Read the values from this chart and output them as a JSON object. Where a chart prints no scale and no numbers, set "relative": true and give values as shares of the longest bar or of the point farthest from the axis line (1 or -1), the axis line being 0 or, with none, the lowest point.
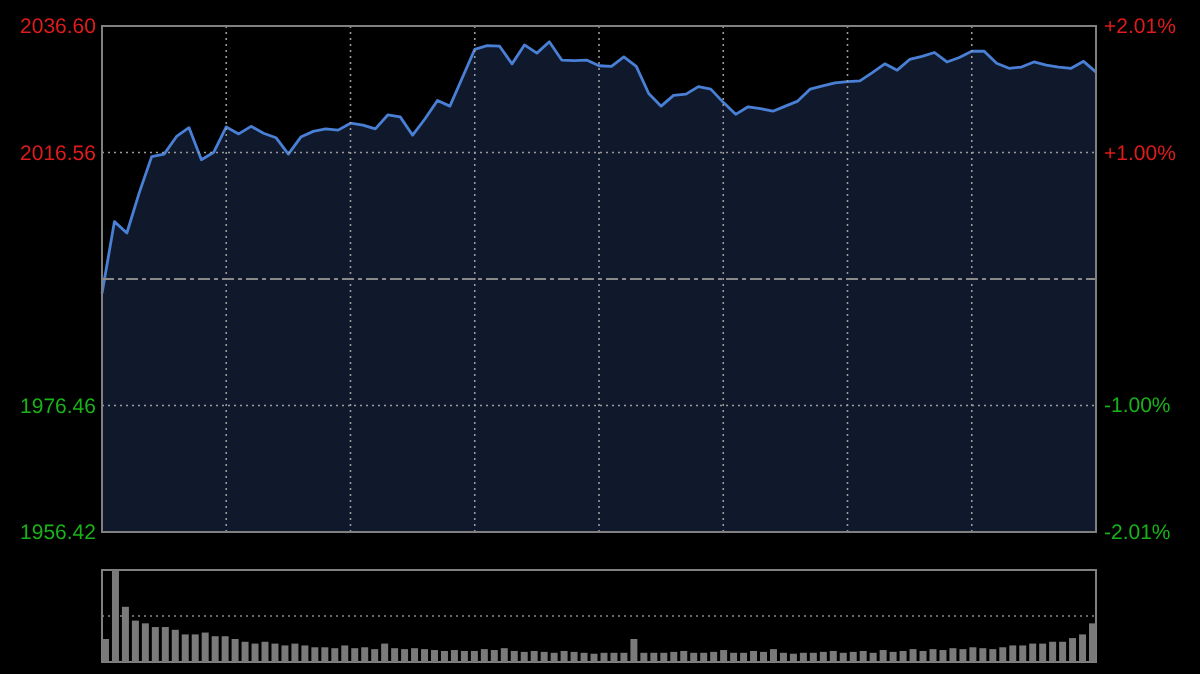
{
  "chart_data": [
    {
      "type": "area",
      "color": "#4a7fd6",
      "categories": [
        null,
        null,
        null,
        null,
        null,
        null,
        null,
        null,
        null,
        null,
        null,
        null,
        null,
        null,
        null,
        null,
        null,
        null,
        null,
        null,
        null,
        null,
        null,
        null,
        null,
        null,
        null,
        null,
        null,
        null,
        null,
        null,
        null,
        null,
        null,
        null,
        null,
        null,
        null,
        null,
        null,
        null,
        null,
        null,
        null,
        null,
        null,
        null,
        null,
        null,
        null,
        null,
        null,
        null,
        null,
        null,
        null,
        null,
        null,
        null,
        null,
        null,
        null,
        null,
        null,
        null,
        null,
        null,
        null,
        null,
        null,
        null,
        null,
        null,
        null,
        null,
        null,
        null,
        null,
        null,
        null
      ],
      "ylim": [
        1956.42,
        2036.6
      ],
      "yticks": [
        1956.42,
        1976.46,
        2016.56,
        {
          "value": 2036.6,
          "label": "2036.60"
        }
      ],
      "y2lim": [
        -2.01,
        2.01
      ],
      "y2ticks": [
        {
          "value": -2.01,
          "label": "-2.01%"
        },
        {
          "value": -1.0,
          "label": "-1.00%"
        },
        {
          "value": 1.0,
          "label": "+1.00%"
        },
        {
          "value": 2.01,
          "label": "+2.01%"
        }
      ],
      "grid": true,
      "ref_lines": [
        {
          "axis": "y",
          "value": 1996.51,
          "color": "#8a8a8a",
          "line_style": "dashed"
        }
      ],
      "values": [
        1994.2,
        2005.6,
        2003.8,
        2010.2,
        2015.9,
        2016.3,
        2019.1,
        2020.5,
        2015.4,
        2016.6,
        2020.6,
        2019.5,
        2020.7,
        2019.6,
        2018.9,
        2016.3,
        2019.0,
        2019.9,
        2020.3,
        2020.1,
        2021.2,
        2020.9,
        2020.3,
        2022.5,
        2022.2,
        2019.3,
        2021.9,
        2024.8,
        2023.9,
        2028.4,
        2032.9,
        2033.5,
        2033.4,
        2030.6,
        2033.6,
        2032.3,
        2034.1,
        2031.2,
        2031.1,
        2031.2,
        2030.3,
        2030.2,
        2031.7,
        2030.2,
        2025.9,
        2023.9,
        2025.6,
        2025.8,
        2027.0,
        2026.6,
        2024.5,
        2022.6,
        2023.8,
        2023.5,
        2023.1,
        2023.9,
        2024.7,
        2026.6,
        2027.1,
        2027.6,
        2027.8,
        2027.9,
        2029.2,
        2030.6,
        2029.6,
        2031.3,
        2031.8,
        2032.4,
        2030.9,
        2031.6,
        2032.6,
        2032.6,
        2030.7,
        2029.9,
        2030.1,
        2030.9,
        2030.4,
        2030.1,
        2029.9,
        2031.0,
        2029.3
      ]
    },
    {
      "type": "bar",
      "relative": true,
      "color": "#7a7a7a",
      "ref_lines": [
        {
          "axis": "y",
          "value": 0.5,
          "color": "#8a8a8a",
          "line_style": "dotted"
        }
      ],
      "categories": [
        null,
        null,
        null,
        null,
        null,
        null,
        null,
        null,
        null,
        null,
        null,
        null,
        null,
        null,
        null,
        null,
        null,
        null,
        null,
        null,
        null,
        null,
        null,
        null,
        null,
        null,
        null,
        null,
        null,
        null,
        null,
        null,
        null,
        null,
        null,
        null,
        null,
        null,
        null,
        null,
        null,
        null,
        null,
        null,
        null,
        null,
        null,
        null,
        null,
        null,
        null,
        null,
        null,
        null,
        null,
        null,
        null,
        null,
        null,
        null,
        null,
        null,
        null,
        null,
        null,
        null,
        null,
        null,
        null,
        null,
        null,
        null,
        null,
        null,
        null,
        null,
        null,
        null,
        null,
        null,
        null,
        null,
        null,
        null,
        null,
        null,
        null,
        null,
        null,
        null,
        null,
        null,
        null,
        null,
        null,
        null,
        null,
        null,
        null,
        null
      ],
      "values": [
        0.25,
        1.0,
        0.6,
        0.45,
        0.42,
        0.38,
        0.38,
        0.35,
        0.3,
        0.3,
        0.32,
        0.28,
        0.28,
        0.25,
        0.22,
        0.2,
        0.22,
        0.2,
        0.18,
        0.2,
        0.18,
        0.16,
        0.16,
        0.15,
        0.18,
        0.15,
        0.16,
        0.14,
        0.2,
        0.15,
        0.14,
        0.15,
        0.14,
        0.13,
        0.12,
        0.13,
        0.12,
        0.12,
        0.14,
        0.13,
        0.15,
        0.12,
        0.11,
        0.12,
        0.11,
        0.1,
        0.12,
        0.11,
        0.1,
        0.09,
        0.1,
        0.1,
        0.1,
        0.25,
        0.1,
        0.1,
        0.1,
        0.11,
        0.12,
        0.1,
        0.1,
        0.11,
        0.13,
        0.1,
        0.1,
        0.12,
        0.11,
        0.14,
        0.1,
        0.09,
        0.1,
        0.1,
        0.11,
        0.12,
        0.1,
        0.11,
        0.12,
        0.1,
        0.13,
        0.11,
        0.12,
        0.14,
        0.12,
        0.14,
        0.13,
        0.15,
        0.14,
        0.16,
        0.15,
        0.14,
        0.16,
        0.18,
        0.18,
        0.2,
        0.2,
        0.22,
        0.22,
        0.26,
        0.3,
        0.42
      ]
    }
  ]
}
